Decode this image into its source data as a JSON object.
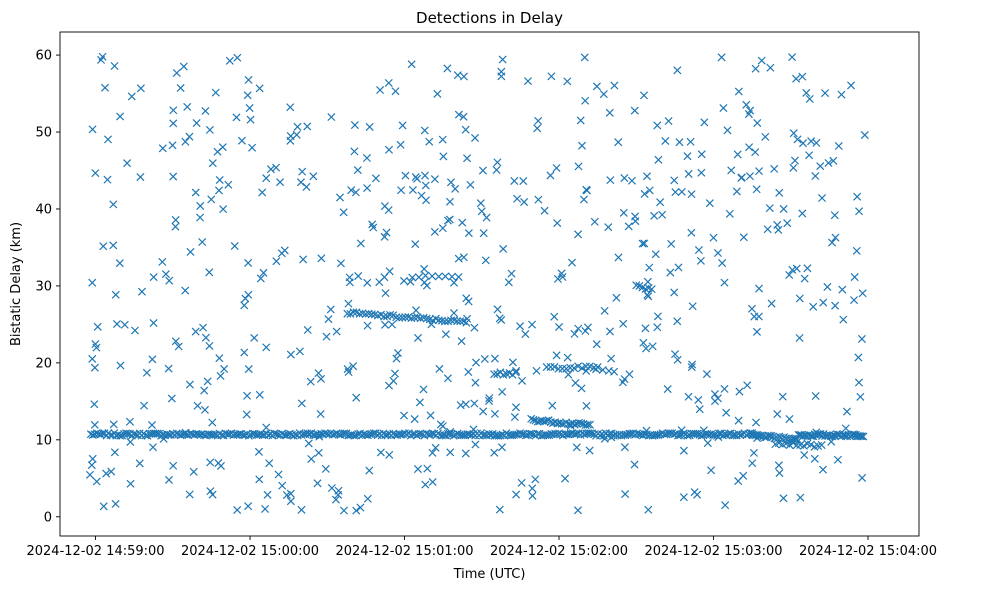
{
  "chart_data": {
    "type": "scatter",
    "title": "Detections in Delay",
    "xlabel": "Time (UTC)",
    "ylabel": "Bistatic Delay (km)",
    "marker": "x",
    "color": "#1f77b4",
    "grid": false,
    "x_unit": "minutes since 2024-12-02 14:59:00",
    "xlim": [
      -0.23,
      5.33
    ],
    "ylim": [
      -2.5,
      63
    ],
    "x_ticks": [
      {
        "value": 0,
        "label": "2024-12-02 14:59:00"
      },
      {
        "value": 1,
        "label": "2024-12-02 15:00:00"
      },
      {
        "value": 2,
        "label": "2024-12-02 15:01:00"
      },
      {
        "value": 3,
        "label": "2024-12-02 15:02:00"
      },
      {
        "value": 4,
        "label": "2024-12-02 15:03:00"
      },
      {
        "value": 5,
        "label": "2024-12-02 15:04:00"
      }
    ],
    "y_ticks": [
      {
        "value": 0,
        "label": "0"
      },
      {
        "value": 10,
        "label": "10"
      },
      {
        "value": 20,
        "label": "20"
      },
      {
        "value": 30,
        "label": "30"
      },
      {
        "value": 40,
        "label": "40"
      },
      {
        "value": 50,
        "label": "50"
      },
      {
        "value": 60,
        "label": "60"
      }
    ],
    "series": [
      {
        "name": "Detections",
        "description": "persistent track near 10.7 km plus scattered clutter",
        "tracks": [
          {
            "x_start": -0.03,
            "x_end": 4.25,
            "y_start": 10.7,
            "y_end": 10.7,
            "count": 340
          },
          {
            "x_start": 4.25,
            "x_end": 4.55,
            "y_start": 10.6,
            "y_end": 10.0,
            "count": 30
          },
          {
            "x_start": 4.55,
            "x_end": 4.97,
            "y_start": 10.6,
            "y_end": 10.6,
            "count": 45
          },
          {
            "x_start": 4.4,
            "x_end": 4.7,
            "y_start": 9.6,
            "y_end": 9.2,
            "count": 14
          },
          {
            "x_start": 1.63,
            "x_end": 2.4,
            "y_start": 26.5,
            "y_end": 25.3,
            "count": 40
          },
          {
            "x_start": 2.82,
            "x_end": 3.2,
            "y_start": 12.6,
            "y_end": 11.9,
            "count": 28
          },
          {
            "x_start": 2.92,
            "x_end": 3.25,
            "y_start": 19.4,
            "y_end": 19.4,
            "count": 14
          },
          {
            "x_start": 2.05,
            "x_end": 2.35,
            "y_start": 31.2,
            "y_end": 31.2,
            "count": 8
          },
          {
            "x_start": 2.58,
            "x_end": 2.72,
            "y_start": 18.6,
            "y_end": 18.6,
            "count": 8
          },
          {
            "x_start": 3.5,
            "x_end": 3.6,
            "y_start": 30.0,
            "y_end": 29.6,
            "count": 6
          }
        ],
        "clutter": {
          "x_range": [
            -0.05,
            4.98
          ],
          "y_range": [
            0.8,
            59.8
          ],
          "count": 640,
          "seed": 7
        }
      }
    ]
  }
}
